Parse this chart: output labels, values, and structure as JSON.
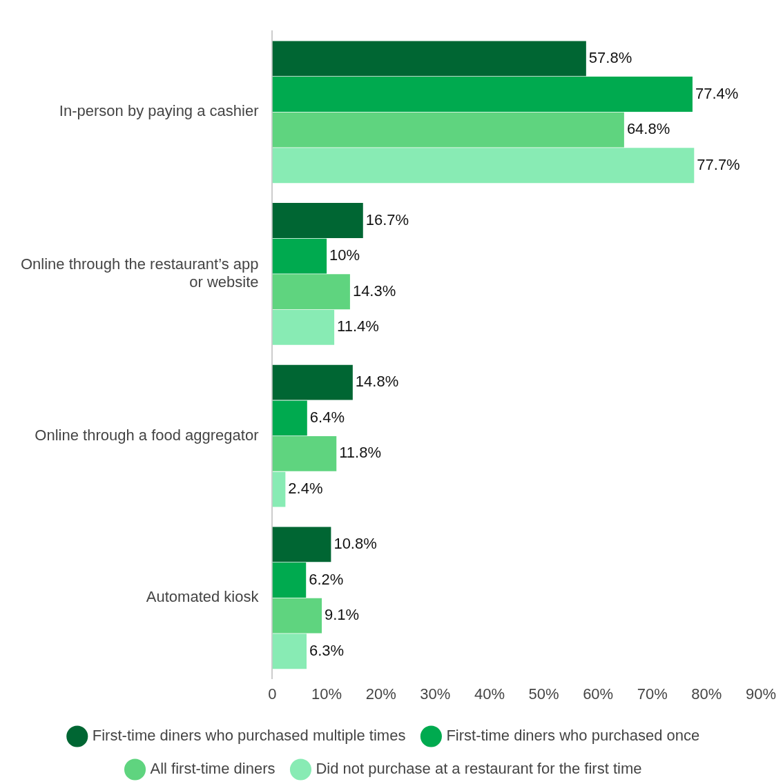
{
  "chart_data": {
    "type": "bar",
    "orientation": "horizontal",
    "categories": [
      "In-person by paying a cashier",
      "Online through the restaurant’s app or website",
      "Online through a food aggregator",
      "Automated kiosk"
    ],
    "series": [
      {
        "name": "First-time diners who purchased multiple times",
        "color": "#006633",
        "values": [
          57.8,
          16.7,
          14.8,
          10.8
        ],
        "value_labels": [
          "57.8%",
          "16.7%",
          "14.8%",
          "10.8%"
        ]
      },
      {
        "name": "First-time diners who purchased once",
        "color": "#00aa4f",
        "values": [
          77.4,
          10,
          6.4,
          6.2
        ],
        "value_labels": [
          "77.4%",
          "10%",
          "6.4%",
          "6.2%"
        ]
      },
      {
        "name": "All first-time diners",
        "color": "#5fd47f",
        "values": [
          64.8,
          14.3,
          11.8,
          9.1
        ],
        "value_labels": [
          "64.8%",
          "14.3%",
          "11.8%",
          "9.1%"
        ]
      },
      {
        "name": "Did not purchase at a restaurant for the first time",
        "color": "#88ebb4",
        "values": [
          77.7,
          11.4,
          2.4,
          6.3
        ],
        "value_labels": [
          "77.7%",
          "11.4%",
          "2.4%",
          "6.3%"
        ]
      }
    ],
    "xlim": [
      0,
      90
    ],
    "xticks": [
      0,
      {
        "value": 10,
        "label": "10%"
      },
      {
        "value": 20,
        "label": "20%"
      },
      {
        "value": 30,
        "label": "30%"
      },
      {
        "value": 40,
        "label": "40%"
      },
      {
        "value": 50,
        "label": "50%"
      },
      {
        "value": 60,
        "label": "60%"
      },
      {
        "value": 70,
        "label": "70%"
      },
      {
        "value": 80,
        "label": "80%"
      },
      {
        "value": 90,
        "label": "90%"
      }
    ],
    "grid": false,
    "legend": "bottom"
  }
}
